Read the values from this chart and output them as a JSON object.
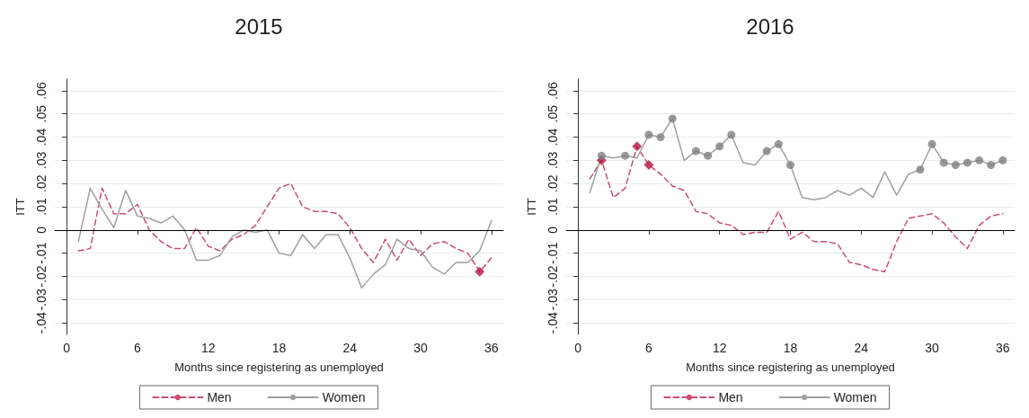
{
  "chart_data": [
    {
      "type": "line",
      "title": "2015",
      "xlabel": "Months since registering as unemployed",
      "ylabel": "ITT",
      "x": [
        1,
        2,
        3,
        4,
        5,
        6,
        7,
        8,
        9,
        10,
        11,
        12,
        13,
        14,
        15,
        16,
        17,
        18,
        19,
        20,
        21,
        22,
        23,
        24,
        25,
        26,
        27,
        28,
        29,
        30,
        31,
        32,
        33,
        34,
        35,
        36
      ],
      "xlim": [
        -1,
        37
      ],
      "xticks": [
        0,
        6,
        12,
        18,
        24,
        30,
        36
      ],
      "ylim": [
        -0.045,
        0.065
      ],
      "yticks": [
        {
          "value": -0.04,
          "label": "-.04"
        },
        {
          "value": -0.03,
          "label": "-.03"
        },
        {
          "value": -0.02,
          "label": "-.02"
        },
        {
          "value": -0.01,
          "label": "-.01"
        },
        0,
        {
          "value": 0.01,
          "label": ".01"
        },
        {
          "value": 0.02,
          "label": ".02"
        },
        {
          "value": 0.03,
          "label": ".03"
        },
        {
          "value": 0.04,
          "label": ".04"
        },
        {
          "value": 0.05,
          "label": ".05"
        },
        {
          "value": 0.06,
          "label": ".06"
        }
      ],
      "grid": "y",
      "legend": "bottom",
      "ref_lines": [
        {
          "axis": "y",
          "value": 0,
          "color": "#000000"
        }
      ],
      "series": [
        {
          "name": "Men",
          "color": "#cc4d72",
          "line_style": "dashed",
          "marker": "none",
          "values": [
            -0.009,
            -0.008,
            0.018,
            0.007,
            0.007,
            0.011,
            0.0,
            -0.005,
            -0.008,
            -0.008,
            0.001,
            -0.007,
            -0.009,
            -0.004,
            -0.002,
            0.002,
            0.01,
            0.018,
            0.02,
            0.01,
            0.008,
            0.008,
            0.007,
            0.001,
            -0.008,
            -0.014,
            -0.004,
            -0.013,
            -0.004,
            -0.011,
            -0.006,
            -0.005,
            -0.008,
            -0.01,
            -0.018,
            -0.012
          ]
        },
        {
          "name": "Women",
          "color": "#a0a0a0",
          "line_style": "solid",
          "marker": "none",
          "values": [
            -0.005,
            0.018,
            0.009,
            0.001,
            0.017,
            0.006,
            0.005,
            0.003,
            0.006,
            0.0,
            -0.013,
            -0.013,
            -0.011,
            -0.003,
            0.0,
            -0.001,
            0.0,
            -0.01,
            -0.011,
            -0.002,
            -0.008,
            -0.002,
            -0.002,
            -0.012,
            -0.025,
            -0.019,
            -0.015,
            -0.004,
            -0.008,
            -0.009,
            -0.016,
            -0.019,
            -0.014,
            -0.014,
            -0.009,
            0.004
          ]
        },
        {
          "type": "scatter",
          "color": "#b5173f",
          "marker": "diamond",
          "x": [
            35
          ],
          "values": [
            -0.018
          ]
        }
      ]
    },
    {
      "type": "line",
      "title": "2016",
      "xlabel": "Months since registering as unemployed",
      "ylabel": "ITT",
      "x": [
        1,
        2,
        3,
        4,
        5,
        6,
        7,
        8,
        9,
        10,
        11,
        12,
        13,
        14,
        15,
        16,
        17,
        18,
        19,
        20,
        21,
        22,
        23,
        24,
        25,
        26,
        27,
        28,
        29,
        30,
        31,
        32,
        33,
        34,
        35,
        36
      ],
      "xlim": [
        -1,
        37
      ],
      "xticks": [
        0,
        6,
        12,
        18,
        24,
        30,
        36
      ],
      "ylim": [
        -0.045,
        0.065
      ],
      "yticks": [
        {
          "value": -0.04,
          "label": "-.04"
        },
        {
          "value": -0.03,
          "label": "-.03"
        },
        {
          "value": -0.02,
          "label": "-.02"
        },
        {
          "value": -0.01,
          "label": "-.01"
        },
        0,
        {
          "value": 0.01,
          "label": ".01"
        },
        {
          "value": 0.02,
          "label": ".02"
        },
        {
          "value": 0.03,
          "label": ".03"
        },
        {
          "value": 0.04,
          "label": ".04"
        },
        {
          "value": 0.05,
          "label": ".05"
        },
        {
          "value": 0.06,
          "label": ".06"
        }
      ],
      "grid": "y",
      "legend": "bottom",
      "ref_lines": [
        {
          "axis": "y",
          "value": 0,
          "color": "#000000"
        }
      ],
      "series": [
        {
          "name": "Men",
          "color": "#cc4d72",
          "line_style": "dashed",
          "marker": "none",
          "values": [
            0.022,
            0.03,
            0.014,
            0.018,
            0.036,
            0.028,
            0.024,
            0.019,
            0.017,
            0.008,
            0.007,
            0.003,
            0.002,
            -0.002,
            -0.001,
            -0.001,
            0.008,
            -0.004,
            -0.001,
            -0.005,
            -0.005,
            -0.006,
            -0.014,
            -0.015,
            -0.017,
            -0.018,
            -0.005,
            0.005,
            0.006,
            0.007,
            0.003,
            -0.003,
            -0.008,
            0.002,
            0.006,
            0.007
          ]
        },
        {
          "name": "Women",
          "color": "#a0a0a0",
          "line_style": "solid",
          "marker": "none",
          "values": [
            0.016,
            0.032,
            0.031,
            0.032,
            0.031,
            0.041,
            0.04,
            0.048,
            0.03,
            0.034,
            0.032,
            0.036,
            0.041,
            0.029,
            0.028,
            0.034,
            0.037,
            0.028,
            0.014,
            0.013,
            0.014,
            0.017,
            0.015,
            0.018,
            0.014,
            0.025,
            0.015,
            0.024,
            0.026,
            0.037,
            0.029,
            0.028,
            0.029,
            0.03,
            0.028,
            0.03
          ]
        },
        {
          "type": "scatter",
          "color": "#b5173f",
          "marker": "diamond",
          "x": [
            2,
            5,
            6
          ],
          "values": [
            0.03,
            0.036,
            0.028
          ]
        },
        {
          "type": "scatter",
          "color": "#808080",
          "marker": "circle",
          "x": [
            2,
            4,
            6,
            7,
            8,
            10,
            11,
            12,
            13,
            16,
            17,
            18,
            29,
            30,
            31,
            32,
            33,
            34,
            35,
            36
          ],
          "values": [
            0.032,
            0.032,
            0.041,
            0.04,
            0.048,
            0.034,
            0.032,
            0.036,
            0.041,
            0.034,
            0.037,
            0.028,
            0.026,
            0.037,
            0.029,
            0.028,
            0.029,
            0.03,
            0.028,
            0.03
          ]
        }
      ]
    }
  ]
}
